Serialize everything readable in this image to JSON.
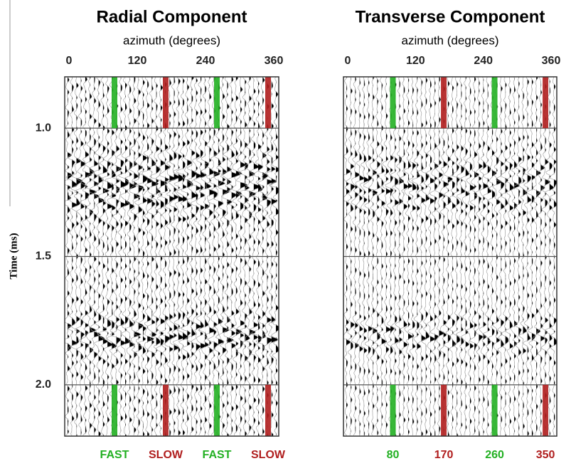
{
  "chart_data": [
    {
      "type": "seismic",
      "title": "Radial Component",
      "x_label": "azimuth (degrees)",
      "y_label": "Time (ms)",
      "xlim": [
        0,
        360
      ],
      "xticks": [
        0,
        120,
        240,
        360
      ],
      "ylim": [
        2.2,
        0.8
      ],
      "yticks": [
        {
          "value": 1,
          "label": "1.0"
        },
        {
          "value": 1.5,
          "label": "1.5"
        },
        {
          "value": 2,
          "label": "2.0"
        }
      ],
      "grid": true,
      "highlights": {
        "azimuths": [
          80,
          170,
          260,
          350
        ],
        "labels": [
          "FAST",
          "SLOW",
          "FAST",
          "SLOW"
        ],
        "colors": [
          "#22b022",
          "#b01e1e",
          "#22b022",
          "#b01e1e"
        ]
      }
    },
    {
      "type": "seismic",
      "title": "Transverse Component",
      "x_label": "azimuth (degrees)",
      "xlim": [
        0,
        360
      ],
      "xticks": [
        0,
        120,
        240,
        360
      ],
      "ylim": [
        2.2,
        0.8
      ],
      "grid": true,
      "highlights": {
        "azimuths": [
          80,
          170,
          260,
          350
        ],
        "colors": [
          "#22b022",
          "#b01e1e",
          "#22b022",
          "#b01e1e"
        ]
      }
    }
  ]
}
